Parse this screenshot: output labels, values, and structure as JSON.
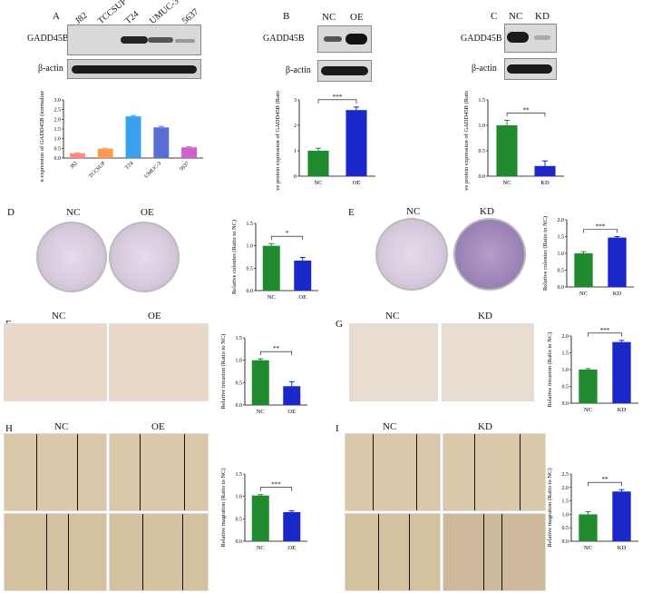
{
  "panels": {
    "A": {
      "letter": "A",
      "blot_label_top": "GADD45B",
      "blot_label_bottom": "β-actin",
      "lanes": [
        "J82",
        "TCCSUP",
        "T24",
        "UMUC-3",
        "5637"
      ]
    },
    "B": {
      "letter": "B",
      "cols": [
        "NC",
        "OE"
      ],
      "blot_label_top": "GADD45B",
      "blot_label_bottom": "β-actin"
    },
    "C": {
      "letter": "C",
      "cols": [
        "NC",
        "KD"
      ],
      "blot_label_top": "GADD45B",
      "blot_label_bottom": "β-actin"
    },
    "D": {
      "letter": "D",
      "cols": [
        "NC",
        "OE"
      ]
    },
    "E": {
      "letter": "E",
      "cols": [
        "NC",
        "KD"
      ]
    },
    "F": {
      "letter": "F",
      "cols": [
        "NC",
        "OE"
      ]
    },
    "G": {
      "letter": "G",
      "cols": [
        "NC",
        "KD"
      ]
    },
    "H": {
      "letter": "H",
      "cols": [
        "NC",
        "OE"
      ]
    },
    "I": {
      "letter": "I",
      "cols": [
        "NC",
        "KD"
      ]
    }
  },
  "colors": {
    "nc": "#1f8a2e",
    "oe": "#1a27c9",
    "kd": "#1a27c9",
    "j82": "#ff8a8a",
    "tccsup": "#ff9a55",
    "t24": "#3aa0f0",
    "umuc3": "#5a6fd6",
    "p5637": "#d060d0"
  },
  "chart_data": [
    {
      "id": "A",
      "type": "bar",
      "categories": [
        "J82",
        "TCCSUP",
        "T24",
        "UMUC-3",
        "5637"
      ],
      "values": [
        0.25,
        0.48,
        2.15,
        1.58,
        0.55
      ],
      "errors": [
        0.02,
        0.03,
        0.04,
        0.05,
        0.03
      ],
      "colors": [
        "#ff8a8a",
        "#ff9a55",
        "#3aa0f0",
        "#5a6fd6",
        "#d060d0"
      ],
      "ylabel": "Protein expression of GADD45B (normalized to β-actin)",
      "ylim": [
        0,
        3.0
      ],
      "yticks": [
        "0.0",
        "0.5",
        "1.0",
        "1.5",
        "2.0",
        "2.5",
        "3.0"
      ],
      "sig": ""
    },
    {
      "id": "B",
      "type": "bar",
      "categories": [
        "NC",
        "OE"
      ],
      "values": [
        1.0,
        2.6
      ],
      "errors": [
        0.1,
        0.12
      ],
      "colors": [
        "#1f8a2e",
        "#1a27c9"
      ],
      "ylabel": "Relative protein expression of GADD45B (Ratio to NC)",
      "ylim": [
        0,
        3
      ],
      "yticks": [
        "0",
        "1",
        "2",
        "3"
      ],
      "sig": "***"
    },
    {
      "id": "C",
      "type": "bar",
      "categories": [
        "NC",
        "KD"
      ],
      "values": [
        1.0,
        0.2
      ],
      "errors": [
        0.1,
        0.1
      ],
      "colors": [
        "#1f8a2e",
        "#1a27c9"
      ],
      "ylabel": "Relative protein expression of GADD45B (Ratio to NC)",
      "ylim": [
        0,
        1.5
      ],
      "yticks": [
        "0.0",
        "0.5",
        "1.0",
        "1.5"
      ],
      "sig": "**"
    },
    {
      "id": "D",
      "type": "bar",
      "categories": [
        "NC",
        "OE"
      ],
      "values": [
        1.0,
        0.67
      ],
      "errors": [
        0.05,
        0.07
      ],
      "colors": [
        "#1f8a2e",
        "#1a27c9"
      ],
      "ylabel": "Relative colonies (Ratio to NC)",
      "ylim": [
        0,
        1.5
      ],
      "yticks": [
        "0.0",
        "0.5",
        "1.0",
        "1.5"
      ],
      "sig": "*"
    },
    {
      "id": "E",
      "type": "bar",
      "categories": [
        "NC",
        "KD"
      ],
      "values": [
        1.0,
        1.47
      ],
      "errors": [
        0.05,
        0.03
      ],
      "colors": [
        "#1f8a2e",
        "#1a27c9"
      ],
      "ylabel": "Relative colonies (Ratio to NC)",
      "ylim": [
        0,
        2.0
      ],
      "yticks": [
        "0.0",
        "0.5",
        "1.0",
        "1.5",
        "2.0"
      ],
      "sig": "***"
    },
    {
      "id": "F",
      "type": "bar",
      "categories": [
        "NC",
        "OE"
      ],
      "values": [
        1.0,
        0.42
      ],
      "errors": [
        0.03,
        0.1
      ],
      "colors": [
        "#1f8a2e",
        "#1a27c9"
      ],
      "ylabel": "Relative invasion (Ratio to NC)",
      "ylim": [
        0,
        1.5
      ],
      "yticks": [
        "0.0",
        "0.5",
        "1.0",
        "1.5"
      ],
      "sig": "**"
    },
    {
      "id": "G",
      "type": "bar",
      "categories": [
        "NC",
        "KD"
      ],
      "values": [
        1.0,
        1.82
      ],
      "errors": [
        0.03,
        0.05
      ],
      "colors": [
        "#1f8a2e",
        "#1a27c9"
      ],
      "ylabel": "Relative invasion (Ratio to NC)",
      "ylim": [
        0,
        2.0
      ],
      "yticks": [
        "0.0",
        "0.5",
        "1.0",
        "1.5",
        "2.0"
      ],
      "sig": "***"
    },
    {
      "id": "H",
      "type": "bar",
      "categories": [
        "NC",
        "OE"
      ],
      "values": [
        1.02,
        0.65
      ],
      "errors": [
        0.02,
        0.03
      ],
      "colors": [
        "#1f8a2e",
        "#1a27c9"
      ],
      "ylabel": "Relative magration (Ratio to NC)",
      "ylim": [
        0,
        1.5
      ],
      "yticks": [
        "0.0",
        "0.5",
        "1.0",
        "1.5"
      ],
      "sig": "***"
    },
    {
      "id": "I",
      "type": "bar",
      "categories": [
        "NC",
        "KD"
      ],
      "values": [
        1.0,
        1.85
      ],
      "errors": [
        0.1,
        0.07
      ],
      "colors": [
        "#1f8a2e",
        "#1a27c9"
      ],
      "ylabel": "Relative magration (Ratio to NC)",
      "ylim": [
        0,
        2.5
      ],
      "yticks": [
        "0.0",
        "0.5",
        "1.0",
        "1.5",
        "2.0",
        "2.5"
      ],
      "sig": "**"
    }
  ]
}
